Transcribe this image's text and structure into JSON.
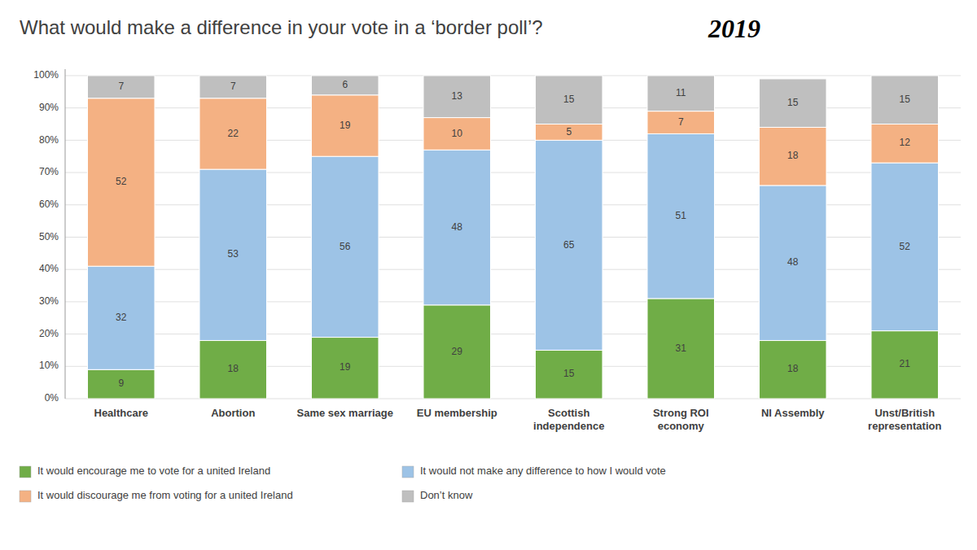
{
  "chart_data": {
    "type": "bar",
    "stacked": true,
    "title": "What would make a difference in your vote in a ‘border poll’?",
    "subtitle": "2019",
    "categories": [
      "Healthcare",
      "Abortion",
      "Same sex marriage",
      "EU membership",
      "Scottish\nindependence",
      "Strong ROI\neconomy",
      "NI Assembly",
      "Unst/British\nrepresentation"
    ],
    "series": [
      {
        "name": "It would encourage me to vote for a united Ireland",
        "color": "#70ad47",
        "values": [
          9,
          18,
          19,
          29,
          15,
          31,
          18,
          21
        ]
      },
      {
        "name": "It would not make any difference to how I would vote",
        "color": "#9dc3e6",
        "values": [
          32,
          53,
          56,
          48,
          65,
          51,
          48,
          52
        ]
      },
      {
        "name": "It would discourage me from voting for a united Ireland",
        "color": "#f4b183",
        "values": [
          52,
          22,
          19,
          10,
          5,
          7,
          18,
          12
        ]
      },
      {
        "name": "Don’t know",
        "color": "#bfbfbf",
        "values": [
          7,
          7,
          6,
          13,
          15,
          11,
          15,
          15
        ]
      }
    ],
    "ylim": [
      0,
      102
    ],
    "yticks": [
      {
        "value": 0,
        "label": "0%"
      },
      {
        "value": 10,
        "label": "10%"
      },
      {
        "value": 20,
        "label": "20%"
      },
      {
        "value": 30,
        "label": "30%"
      },
      {
        "value": 40,
        "label": "40%"
      },
      {
        "value": 50,
        "label": "50%"
      },
      {
        "value": 60,
        "label": "60%"
      },
      {
        "value": 70,
        "label": "70%"
      },
      {
        "value": 80,
        "label": "80%"
      },
      {
        "value": 90,
        "label": "90%"
      },
      {
        "value": 100,
        "label": "100%"
      }
    ],
    "grid": true,
    "data_labels": true,
    "legend": "bottom-left"
  }
}
